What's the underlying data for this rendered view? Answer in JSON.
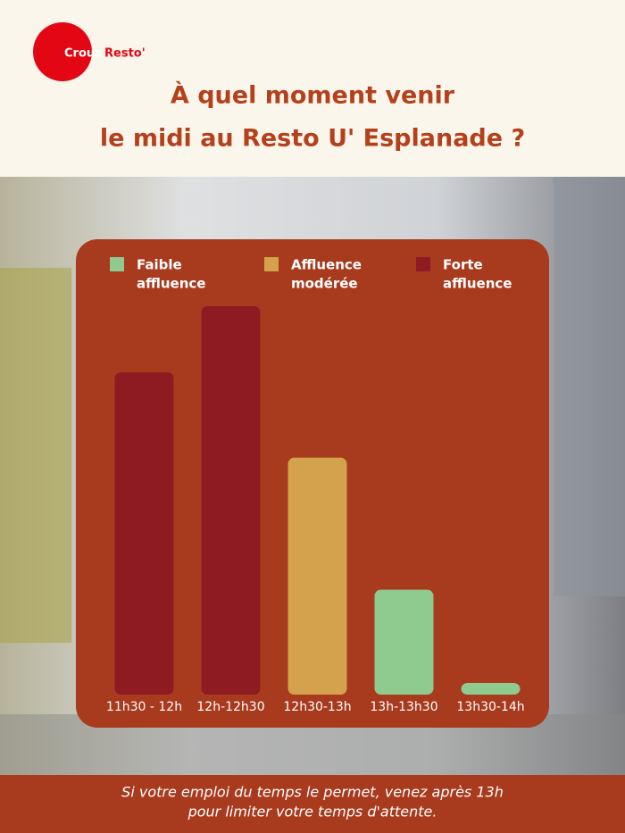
{
  "logo": {
    "brand": "Crous",
    "product": "Resto'"
  },
  "chart_data": {
    "type": "bar",
    "title": [
      "À quel moment venir",
      "le midi au Resto U' Esplanade ?"
    ],
    "categories": [
      "11h30 - 12h",
      "12h-12h30",
      "12h30-13h",
      "13h-13h30",
      "13h30-14h"
    ],
    "values": [
      83,
      100,
      61,
      27,
      3
    ],
    "bar_colors": [
      "#8e1a22",
      "#8e1a22",
      "#d4a24c",
      "#8fcb8f",
      "#8fcb8f"
    ],
    "legend": [
      {
        "name": [
          "Faible",
          "affluence"
        ],
        "color": "#8fcb8f"
      },
      {
        "name": [
          "Affluence",
          "modérée"
        ],
        "color": "#d4a24c"
      },
      {
        "name": [
          "Forte",
          "affluence"
        ],
        "color": "#8e1a22"
      }
    ]
  },
  "footer": [
    "Si votre emploi du temps le permet, venez après 13h",
    "pour limiter votre temps d'attente."
  ]
}
